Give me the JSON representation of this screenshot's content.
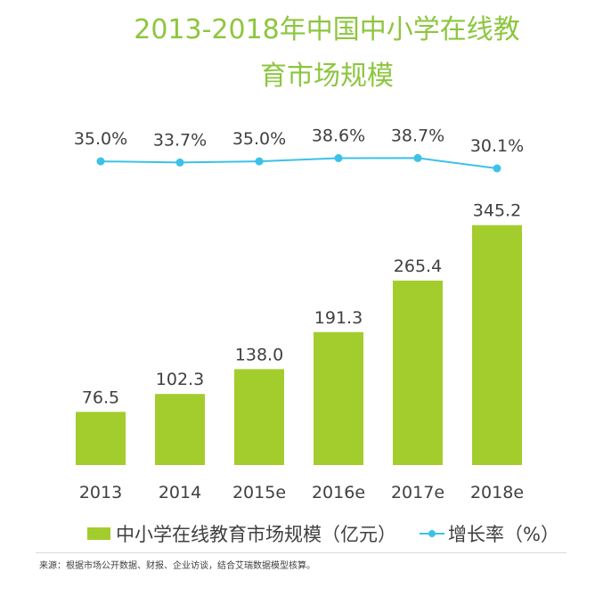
{
  "chart_data": {
    "type": "bar",
    "title_lines": [
      "2013-2018年中国中小学在线教",
      "育市场规模"
    ],
    "categories": [
      "2013",
      "2014",
      "2015e",
      "2016e",
      "2017e",
      "2018e"
    ],
    "series": [
      {
        "name": "中小学在线教育市场规模（亿元）",
        "type": "bar",
        "color": "#a2cd2d",
        "values": [
          76.5,
          102.3,
          138.0,
          191.3,
          265.4,
          345.2
        ],
        "labels": [
          "76.5",
          "102.3",
          "138.0",
          "191.3",
          "265.4",
          "345.2"
        ]
      },
      {
        "name": "增长率（%）",
        "type": "line",
        "color": "#3cc1e8",
        "values": [
          35.0,
          33.7,
          35.0,
          38.6,
          38.7,
          30.1
        ],
        "labels": [
          "35.0%",
          "33.7%",
          "35.0%",
          "38.6%",
          "38.7%",
          "30.1%"
        ]
      }
    ],
    "xlabel": "",
    "ylabel": "",
    "grid": false,
    "legend_position": "bottom"
  },
  "legend": {
    "bar_label": "中小学在线教育市场规模（亿元）",
    "line_label": "增长率（%）"
  },
  "source": "来源：根据市场公开数据、财报、企业访谈，结合艾瑞数据模型核算。"
}
